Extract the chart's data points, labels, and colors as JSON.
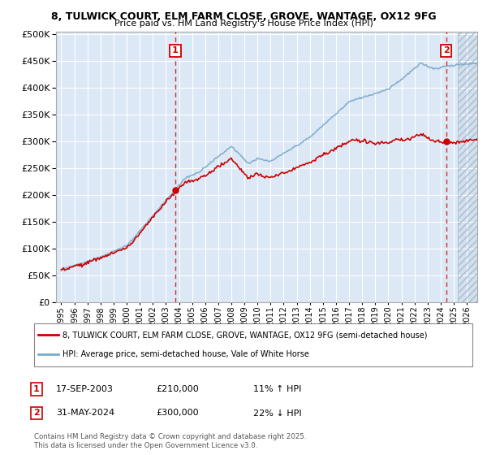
{
  "title1": "8, TULWICK COURT, ELM FARM CLOSE, GROVE, WANTAGE, OX12 9FG",
  "title2": "Price paid vs. HM Land Registry's House Price Index (HPI)",
  "legend_line1": "8, TULWICK COURT, ELM FARM CLOSE, GROVE, WANTAGE, OX12 9FG (semi-detached house)",
  "legend_line2": "HPI: Average price, semi-detached house, Vale of White Horse",
  "annotation1_date": "17-SEP-2003",
  "annotation1_price": "£210,000",
  "annotation1_hpi": "11% ↑ HPI",
  "annotation2_date": "31-MAY-2024",
  "annotation2_price": "£300,000",
  "annotation2_hpi": "22% ↓ HPI",
  "footer": "Contains HM Land Registry data © Crown copyright and database right 2025.\nThis data is licensed under the Open Government Licence v3.0.",
  "red_color": "#cc0000",
  "blue_color": "#7aaacc",
  "vline_color": "#cc0000",
  "bg_color": "#ffffff",
  "plot_bg": "#dce8f5",
  "grid_color": "#ffffff",
  "yticks": [
    0,
    50000,
    100000,
    150000,
    200000,
    250000,
    300000,
    350000,
    400000,
    450000,
    500000
  ],
  "sale1_x": 2003.72,
  "sale1_y": 210000,
  "sale2_x": 2024.42,
  "sale2_y": 300000,
  "xmin": 1994.6,
  "xmax": 2026.5,
  "ymin": 0,
  "ymax": 500000,
  "hatch_start": 2025.3
}
